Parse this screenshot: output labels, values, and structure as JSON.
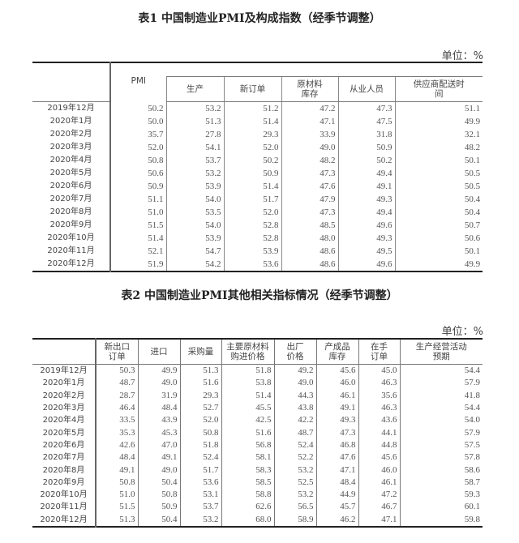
{
  "table1": {
    "title": "表1  中国制造业PMI及构成指数（经季节调整）",
    "unit": "单位：%",
    "headers": [
      "PMI",
      "生产",
      "新订单",
      "原材料\n库存",
      "从业人员",
      "供应商配送时\n间"
    ],
    "rows": [
      [
        "2019年12月",
        "50.2",
        "53.2",
        "51.2",
        "47.2",
        "47.3",
        "51.1"
      ],
      [
        "2020年1月",
        "50.0",
        "51.3",
        "51.4",
        "47.1",
        "47.5",
        "49.9"
      ],
      [
        "2020年2月",
        "35.7",
        "27.8",
        "29.3",
        "33.9",
        "31.8",
        "32.1"
      ],
      [
        "2020年3月",
        "52.0",
        "54.1",
        "52.0",
        "49.0",
        "50.9",
        "48.2"
      ],
      [
        "2020年4月",
        "50.8",
        "53.7",
        "50.2",
        "48.2",
        "50.2",
        "50.1"
      ],
      [
        "2020年5月",
        "50.6",
        "53.2",
        "50.9",
        "47.3",
        "49.4",
        "50.5"
      ],
      [
        "2020年6月",
        "50.9",
        "53.9",
        "51.4",
        "47.6",
        "49.1",
        "50.5"
      ],
      [
        "2020年7月",
        "51.1",
        "54.0",
        "51.7",
        "47.9",
        "49.3",
        "50.4"
      ],
      [
        "2020年8月",
        "51.0",
        "53.5",
        "52.0",
        "47.3",
        "49.4",
        "50.4"
      ],
      [
        "2020年9月",
        "51.5",
        "54.0",
        "52.8",
        "48.5",
        "49.6",
        "50.7"
      ],
      [
        "2020年10月",
        "51.4",
        "53.9",
        "52.8",
        "48.0",
        "49.3",
        "50.6"
      ],
      [
        "2020年11月",
        "52.1",
        "54.7",
        "53.9",
        "48.6",
        "49.5",
        "50.1"
      ],
      [
        "2020年12月",
        "51.9",
        "54.2",
        "53.6",
        "48.6",
        "49.6",
        "49.9"
      ]
    ]
  },
  "table2": {
    "title": "表2  中国制造业PMI其他相关指标情况（经季节调整）",
    "unit": "单位：%",
    "headers": [
      "新出口\n订单",
      "进口",
      "采购量",
      "主要原材料\n购进价格",
      "出厂\n价格",
      "产成品\n库存",
      "在手\n订单",
      "生产经营活动\n预期"
    ],
    "rows": [
      [
        "2019年12月",
        "50.3",
        "49.9",
        "51.3",
        "51.8",
        "49.2",
        "45.6",
        "45.0",
        "54.4"
      ],
      [
        "2020年1月",
        "48.7",
        "49.0",
        "51.6",
        "53.8",
        "49.0",
        "46.0",
        "46.3",
        "57.9"
      ],
      [
        "2020年2月",
        "28.7",
        "31.9",
        "29.3",
        "51.4",
        "44.3",
        "46.1",
        "35.6",
        "41.8"
      ],
      [
        "2020年3月",
        "46.4",
        "48.4",
        "52.7",
        "45.5",
        "43.8",
        "49.1",
        "46.3",
        "54.4"
      ],
      [
        "2020年4月",
        "33.5",
        "43.9",
        "52.0",
        "42.5",
        "42.2",
        "49.3",
        "43.6",
        "54.0"
      ],
      [
        "2020年5月",
        "35.3",
        "45.3",
        "50.8",
        "51.6",
        "48.7",
        "47.3",
        "44.1",
        "57.9"
      ],
      [
        "2020年6月",
        "42.6",
        "47.0",
        "51.8",
        "56.8",
        "52.4",
        "46.8",
        "44.8",
        "57.5"
      ],
      [
        "2020年7月",
        "48.4",
        "49.1",
        "52.4",
        "58.1",
        "52.2",
        "47.6",
        "45.6",
        "57.8"
      ],
      [
        "2020年8月",
        "49.1",
        "49.0",
        "51.7",
        "58.3",
        "53.2",
        "47.1",
        "46.0",
        "58.6"
      ],
      [
        "2020年9月",
        "50.8",
        "50.4",
        "53.6",
        "58.5",
        "52.5",
        "48.4",
        "46.1",
        "58.7"
      ],
      [
        "2020年10月",
        "51.0",
        "50.8",
        "53.1",
        "58.8",
        "53.2",
        "44.9",
        "47.2",
        "59.3"
      ],
      [
        "2020年11月",
        "51.5",
        "50.9",
        "53.7",
        "62.6",
        "56.5",
        "45.7",
        "46.7",
        "60.1"
      ],
      [
        "2020年12月",
        "51.3",
        "50.4",
        "53.2",
        "68.0",
        "58.9",
        "46.2",
        "47.1",
        "59.8"
      ]
    ]
  }
}
